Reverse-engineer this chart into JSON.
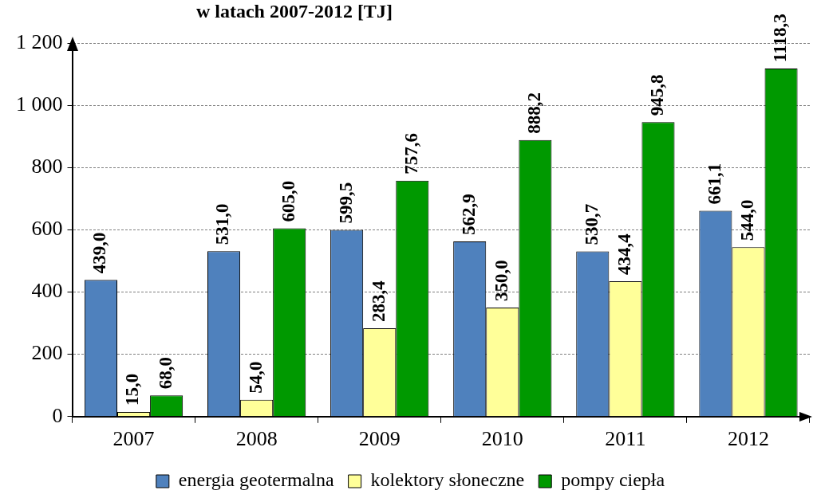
{
  "chart_data": {
    "type": "bar",
    "title": "w latach 2007-2012 [TJ]",
    "categories": [
      "2007",
      "2008",
      "2009",
      "2010",
      "2011",
      "2012"
    ],
    "series": [
      {
        "name": "energia geotermalna",
        "color": "#4f81bd",
        "values": [
          439.0,
          531.0,
          599.5,
          562.9,
          530.7,
          661.1
        ],
        "value_labels": [
          "439,0",
          "531,0",
          "599,5",
          "562,9",
          "530,7",
          "661,1"
        ]
      },
      {
        "name": "kolektory słoneczne",
        "color": "#ffff99",
        "values": [
          15.0,
          54.0,
          283.4,
          350.0,
          434.4,
          544.0
        ],
        "value_labels": [
          "15,0",
          "54,0",
          "283,4",
          "350,0",
          "434,4",
          "544,0"
        ]
      },
      {
        "name": "pompy ciepła",
        "color": "#009900",
        "values": [
          68.0,
          605.0,
          757.6,
          888.2,
          945.8,
          1118.3
        ],
        "value_labels": [
          "68,0",
          "605,0",
          "757,6",
          "888,2",
          "945,8",
          "1118,3"
        ]
      }
    ],
    "ylim": [
      0,
      1200
    ],
    "yticks": [
      0,
      200,
      400,
      600,
      800,
      {
        "value": 1000,
        "label": "1 000"
      },
      {
        "value": 1200,
        "label": "1 200"
      }
    ],
    "grid": "y",
    "legend": "bottom"
  }
}
